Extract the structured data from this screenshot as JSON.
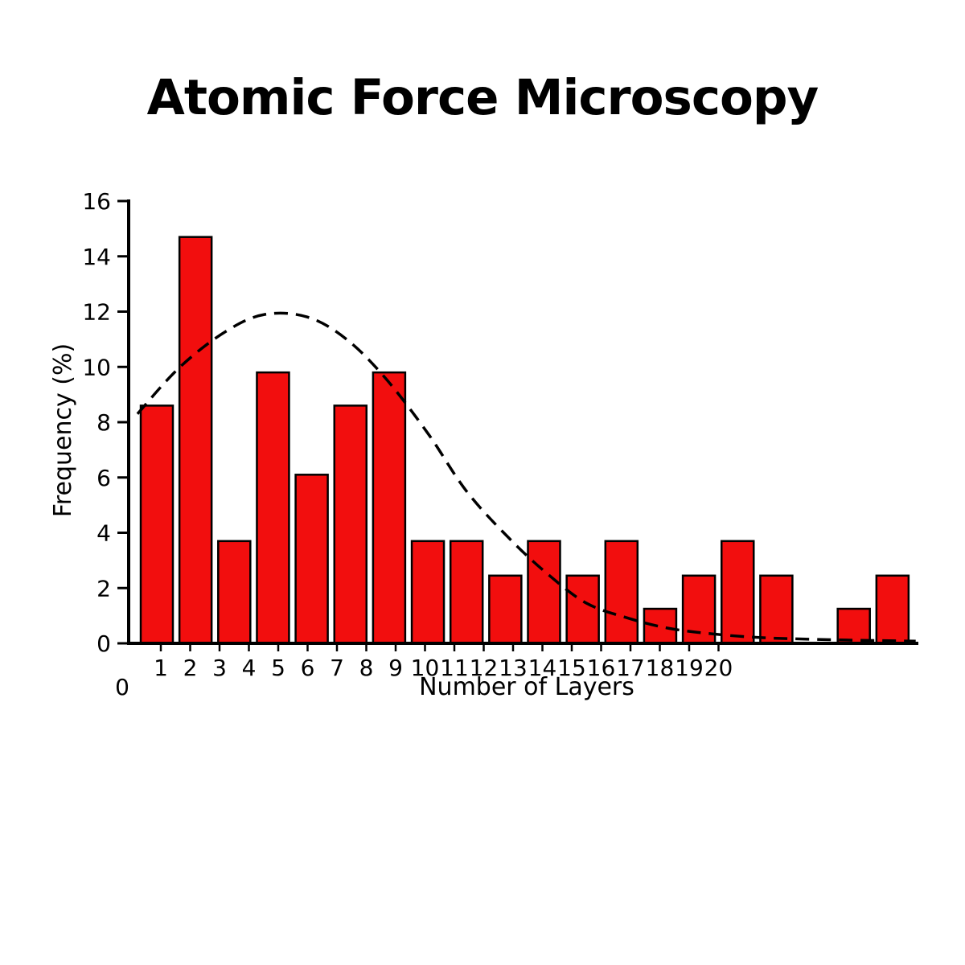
{
  "page": {
    "background": "#ffffff",
    "title": "Atomic Force Microscopy"
  },
  "chart_data": {
    "type": "bar",
    "title": "Atomic Force Microscopy",
    "xlabel": "Number of Layers",
    "ylabel": "Frequency (%)",
    "ylim": [
      0,
      16
    ],
    "y_ticks": [
      0,
      2,
      4,
      6,
      8,
      10,
      12,
      14,
      16
    ],
    "x_tick_labels": [
      "1",
      "2",
      "3",
      "4",
      "5",
      "6",
      "7",
      "8",
      "9",
      "10",
      "11",
      "12",
      "13",
      "14",
      "15",
      "16",
      "17",
      "18",
      "19",
      "20"
    ],
    "origin_label": "0",
    "grid": false,
    "legend": "none",
    "bar_color": "#f20e0e",
    "bar_border_color": "#000000",
    "categories": [
      1,
      2,
      3,
      4,
      5,
      6,
      7,
      8,
      9,
      10,
      11,
      12,
      13,
      14,
      15,
      16,
      17,
      18,
      19,
      20
    ],
    "values": [
      8.6,
      14.7,
      3.7,
      9.8,
      6.1,
      8.6,
      9.8,
      3.7,
      3.7,
      2.45,
      3.7,
      2.45,
      3.7,
      1.25,
      2.45,
      3.7,
      2.45,
      0,
      1.25,
      2.45
    ],
    "fit_curve": {
      "style": "dashed",
      "color": "#000000",
      "points": [
        [
          0.5,
          8.3
        ],
        [
          1.6,
          10.0
        ],
        [
          2.8,
          11.3
        ],
        [
          3.8,
          11.9
        ],
        [
          4.9,
          11.8
        ],
        [
          5.9,
          11.0
        ],
        [
          6.9,
          9.6
        ],
        [
          8.0,
          7.6
        ],
        [
          9.0,
          5.5
        ],
        [
          10.1,
          3.8
        ],
        [
          11.1,
          2.5
        ],
        [
          12.1,
          1.45
        ],
        [
          13.2,
          0.9
        ],
        [
          14.2,
          0.55
        ],
        [
          15.3,
          0.35
        ],
        [
          16.7,
          0.2
        ],
        [
          18.8,
          0.12
        ],
        [
          20.6,
          0.08
        ]
      ]
    }
  }
}
